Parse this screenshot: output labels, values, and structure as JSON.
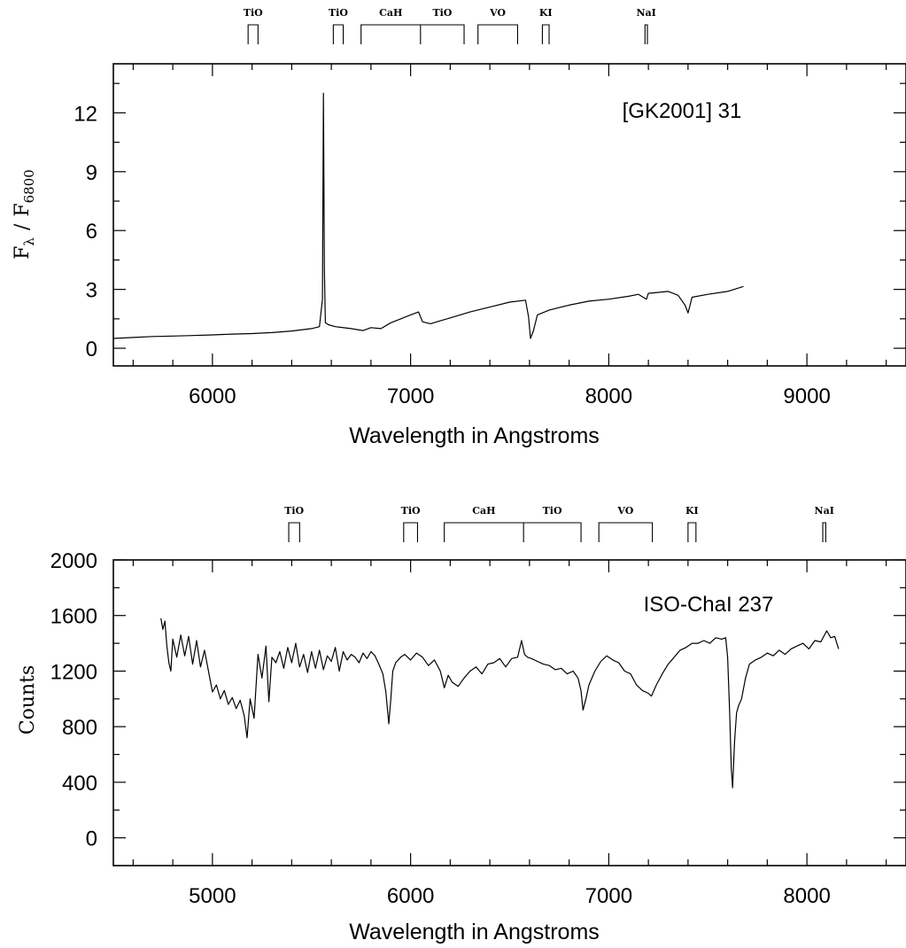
{
  "chart_data": [
    {
      "type": "line",
      "ylabel": "F_λ / F_6800",
      "ylabel_parts": {
        "f": "F",
        "sub1": "λ",
        "slash": "/",
        "sub2": "6800"
      },
      "xlabel": "Wavelength in Angstroms",
      "object_label": "[GK2001] 31",
      "xlim": [
        5500,
        9500
      ],
      "ylim": [
        -0.9,
        14.5
      ],
      "xticks": [
        6000,
        7000,
        8000,
        9000
      ],
      "yticks": [
        0,
        3,
        6,
        9,
        12
      ],
      "grid": false,
      "bands": [
        {
          "name": "TiO",
          "start": 6180,
          "end": 6230
        },
        {
          "name": "TiO",
          "start": 6610,
          "end": 6660
        },
        {
          "name": "CaH",
          "start": 6750,
          "end": 7050
        },
        {
          "name": "TiO",
          "start": 7050,
          "end": 7270
        },
        {
          "name": "VO",
          "start": 7340,
          "end": 7540
        },
        {
          "name": "KI",
          "start": 7665,
          "end": 7699
        },
        {
          "name": "NaI",
          "start": 8183,
          "end": 8195
        }
      ],
      "series": [
        {
          "x": [
            5500,
            5600,
            5700,
            5800,
            5900,
            6000,
            6100,
            6200,
            6300,
            6400,
            6500,
            6540,
            6555,
            6560,
            6565,
            6570,
            6585,
            6620,
            6700,
            6760,
            6800,
            6850,
            6900,
            6950,
            7000,
            7040,
            7060,
            7100,
            7150,
            7200,
            7300,
            7400,
            7500,
            7580,
            7595,
            7605,
            7620,
            7640,
            7700,
            7800,
            7900,
            8000,
            8100,
            8150,
            8190,
            8200,
            8250,
            8300,
            8350,
            8385,
            8400,
            8420,
            8500,
            8600,
            8680
          ],
          "y": [
            0.5,
            0.55,
            0.6,
            0.62,
            0.65,
            0.68,
            0.72,
            0.75,
            0.8,
            0.88,
            1.0,
            1.1,
            2.5,
            13.0,
            4.0,
            1.3,
            1.2,
            1.1,
            1.0,
            0.9,
            1.05,
            1.0,
            1.3,
            1.5,
            1.7,
            1.85,
            1.35,
            1.25,
            1.4,
            1.55,
            1.85,
            2.1,
            2.35,
            2.45,
            1.6,
            0.5,
            0.9,
            1.7,
            1.95,
            2.2,
            2.4,
            2.5,
            2.65,
            2.75,
            2.5,
            2.8,
            2.85,
            2.9,
            2.7,
            2.2,
            1.8,
            2.6,
            2.75,
            2.9,
            3.15
          ]
        }
      ]
    },
    {
      "type": "line",
      "ylabel": "Counts",
      "xlabel": "Wavelength in Angstroms",
      "object_label": "ISO-ChaI 237",
      "xlim": [
        4500,
        8500
      ],
      "ylim": [
        -200,
        2000
      ],
      "xticks": [
        5000,
        6000,
        7000,
        8000
      ],
      "yticks": [
        0,
        400,
        800,
        1200,
        1600,
        2000
      ],
      "grid": false,
      "bands": [
        {
          "name": "TiO",
          "start": 5385,
          "end": 5440
        },
        {
          "name": "TiO",
          "start": 5965,
          "end": 6035
        },
        {
          "name": "CaH",
          "start": 6170,
          "end": 6570
        },
        {
          "name": "TiO",
          "start": 6570,
          "end": 6860
        },
        {
          "name": "VO",
          "start": 6950,
          "end": 7220
        },
        {
          "name": "KI",
          "start": 7400,
          "end": 7440
        },
        {
          "name": "NaI",
          "start": 8080,
          "end": 8095
        }
      ],
      "series": [
        {
          "x": [
            4740,
            4750,
            4760,
            4770,
            4780,
            4790,
            4800,
            4820,
            4840,
            4860,
            4880,
            4900,
            4920,
            4940,
            4960,
            4980,
            5000,
            5020,
            5040,
            5060,
            5080,
            5100,
            5120,
            5140,
            5160,
            5175,
            5190,
            5210,
            5230,
            5250,
            5270,
            5285,
            5300,
            5320,
            5340,
            5360,
            5380,
            5400,
            5420,
            5440,
            5460,
            5480,
            5500,
            5520,
            5540,
            5560,
            5580,
            5600,
            5620,
            5640,
            5660,
            5680,
            5700,
            5720,
            5740,
            5760,
            5780,
            5800,
            5820,
            5840,
            5860,
            5875,
            5890,
            5900,
            5910,
            5925,
            5950,
            5970,
            6000,
            6030,
            6060,
            6090,
            6120,
            6150,
            6170,
            6190,
            6210,
            6240,
            6270,
            6300,
            6330,
            6360,
            6390,
            6420,
            6450,
            6480,
            6510,
            6540,
            6560,
            6575,
            6590,
            6610,
            6640,
            6670,
            6700,
            6730,
            6760,
            6790,
            6820,
            6845,
            6860,
            6870,
            6885,
            6900,
            6930,
            6960,
            6990,
            7020,
            7050,
            7080,
            7110,
            7140,
            7170,
            7200,
            7215,
            7240,
            7270,
            7300,
            7330,
            7360,
            7390,
            7420,
            7450,
            7480,
            7510,
            7540,
            7570,
            7590,
            7600,
            7610,
            7618,
            7625,
            7635,
            7645,
            7655,
            7670,
            7690,
            7710,
            7740,
            7770,
            7800,
            7830,
            7860,
            7890,
            7920,
            7950,
            7980,
            8010,
            8040,
            8070,
            8100,
            8120,
            8140,
            8160
          ],
          "y": [
            1580,
            1500,
            1560,
            1380,
            1260,
            1200,
            1430,
            1300,
            1460,
            1310,
            1450,
            1250,
            1420,
            1230,
            1350,
            1200,
            1050,
            1100,
            1000,
            1060,
            960,
            1010,
            930,
            990,
            880,
            720,
            1000,
            860,
            1320,
            1150,
            1380,
            980,
            1300,
            1260,
            1340,
            1220,
            1370,
            1260,
            1400,
            1230,
            1320,
            1190,
            1340,
            1220,
            1350,
            1210,
            1310,
            1270,
            1370,
            1200,
            1340,
            1280,
            1320,
            1300,
            1260,
            1330,
            1290,
            1340,
            1310,
            1250,
            1180,
            1050,
            820,
            1000,
            1200,
            1260,
            1300,
            1320,
            1280,
            1330,
            1300,
            1240,
            1280,
            1200,
            1080,
            1170,
            1120,
            1090,
            1150,
            1200,
            1230,
            1180,
            1250,
            1260,
            1290,
            1230,
            1290,
            1300,
            1420,
            1320,
            1300,
            1290,
            1270,
            1250,
            1240,
            1210,
            1220,
            1180,
            1200,
            1150,
            1060,
            920,
            1000,
            1100,
            1200,
            1270,
            1310,
            1280,
            1260,
            1200,
            1180,
            1100,
            1060,
            1040,
            1020,
            1100,
            1180,
            1250,
            1300,
            1350,
            1370,
            1400,
            1400,
            1420,
            1400,
            1440,
            1430,
            1440,
            1300,
            900,
            500,
            360,
            700,
            900,
            950,
            1000,
            1150,
            1250,
            1280,
            1300,
            1330,
            1310,
            1350,
            1320,
            1360,
            1380,
            1400,
            1360,
            1420,
            1410,
            1490,
            1440,
            1450,
            1360
          ]
        }
      ]
    }
  ]
}
